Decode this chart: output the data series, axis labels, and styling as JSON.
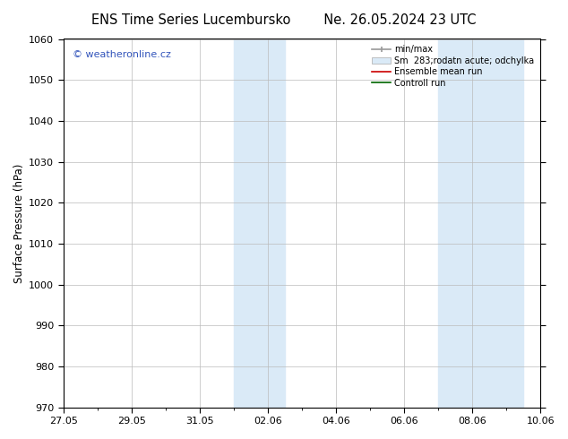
{
  "title_left": "ENS Time Series Lucembursko",
  "title_right": "Ne. 26.05.2024 23 UTC",
  "ylabel": "Surface Pressure (hPa)",
  "ylim": [
    970,
    1060
  ],
  "yticks": [
    970,
    980,
    990,
    1000,
    1010,
    1020,
    1030,
    1040,
    1050,
    1060
  ],
  "xtick_labels": [
    "27.05",
    "29.05",
    "31.05",
    "02.06",
    "04.06",
    "06.06",
    "08.06",
    "10.06"
  ],
  "xtick_positions": [
    0,
    2,
    4,
    6,
    8,
    10,
    12,
    14
  ],
  "xlim": [
    0,
    14
  ],
  "shaded_regions": [
    {
      "x_start": 5.0,
      "x_end": 6.5
    },
    {
      "x_start": 11.0,
      "x_end": 13.5
    }
  ],
  "shaded_color": "#daeaf7",
  "watermark_text": "© weatheronline.cz",
  "watermark_color": "#3355bb",
  "legend_entries": [
    {
      "label": "min/max",
      "color": "#999999",
      "style": "minmax"
    },
    {
      "label": "Sm  283;rodatn acute; odchylka",
      "color": "#daeaf7",
      "style": "fill"
    },
    {
      "label": "Ensemble mean run",
      "color": "#cc0000",
      "style": "line"
    },
    {
      "label": "Controll run",
      "color": "#006600",
      "style": "line"
    }
  ],
  "bg_color": "#ffffff",
  "grid_color": "#bbbbbb",
  "font_size_title": 10.5,
  "font_size_axis": 8.5,
  "font_size_tick": 8,
  "font_size_legend": 7,
  "font_size_watermark": 8
}
